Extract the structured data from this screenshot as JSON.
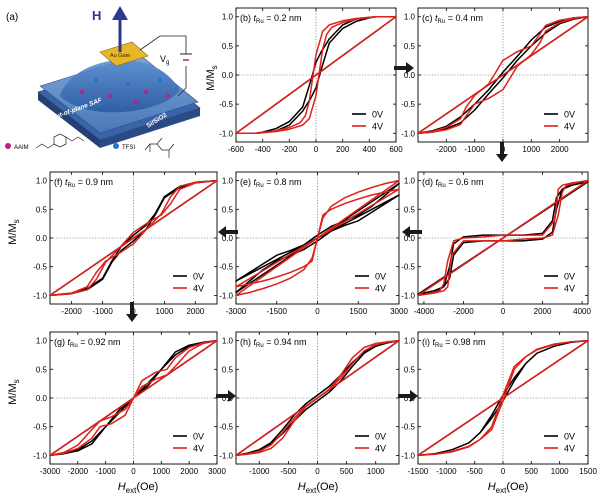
{
  "figure": {
    "colors": {
      "curve_0V": "#000000",
      "curve_4V": "#e0201b",
      "arrow": "#1a1a1a",
      "axis": "#000000",
      "dotted": "#555555"
    },
    "ylabel_base": "M/M",
    "ylabel_sub": "s",
    "xlabel_base": "H",
    "xlabel_sub": "ext",
    "xlabel_unit": "(Oe)",
    "flow_arrows": [
      "right",
      "down",
      "left",
      "left",
      "down",
      "right",
      "right"
    ]
  },
  "schematic": {
    "panel_label": "(a)",
    "field_label": "H",
    "gate_label": "V",
    "gate_sub": "g",
    "electrode_label": "Au Gate",
    "stack_label": "Out-of-plane SAF",
    "substrate_label": "Si/SiO2",
    "legend": [
      {
        "icon": "cation-dot",
        "label": "AAIM",
        "color": "#c0208a"
      },
      {
        "icon": "anion-dot",
        "label": "TFSI",
        "color": "#2a73c9"
      }
    ]
  },
  "chart_data": [
    {
      "type": "line",
      "panel": "(b)",
      "label_t": "t",
      "label_sub": "Ru",
      "label_value": "= 0.2 nm",
      "x_ticks": [
        -600,
        -400,
        -200,
        0,
        200,
        400,
        600
      ],
      "y_ticks": [
        1.0,
        0.5,
        0.0,
        -0.5,
        -1.0
      ],
      "xlim": [
        -600,
        600
      ],
      "ylim": [
        -1.15,
        1.15
      ],
      "legend": [
        "0V",
        "4V"
      ],
      "series": [
        {
          "name": "0V",
          "x": [
            -600,
            -450,
            -300,
            -200,
            -100,
            -40,
            0,
            40,
            100,
            200,
            300,
            400,
            450,
            600
          ],
          "y": [
            -1.0,
            -1.0,
            -0.96,
            -0.86,
            -0.62,
            -0.4,
            -0.22,
            0.1,
            0.55,
            0.8,
            0.92,
            0.98,
            1.0,
            1.0
          ]
        },
        {
          "name": "4V",
          "x": [
            -600,
            -450,
            -300,
            -200,
            -120,
            -80,
            -50,
            0,
            50,
            100,
            200,
            300,
            400,
            450,
            600
          ],
          "y": [
            -1.0,
            -1.0,
            -0.96,
            -0.9,
            -0.82,
            -0.7,
            -0.45,
            0.35,
            0.75,
            0.86,
            0.93,
            0.97,
            0.99,
            1.0,
            1.0
          ]
        }
      ]
    },
    {
      "type": "line",
      "panel": "(c)",
      "label_t": "t",
      "label_sub": "Ru",
      "label_value": "= 0.4 nm",
      "x_ticks": [
        -2000,
        -1000,
        0,
        1000,
        2000
      ],
      "y_ticks": [
        1.0,
        0.5,
        0.0,
        -0.5,
        -1.0
      ],
      "xlim": [
        -3000,
        3000
      ],
      "ylim": [
        -1.15,
        1.15
      ],
      "legend": [
        "0V",
        "4V"
      ],
      "series": [
        {
          "name": "0V",
          "x": [
            -3000,
            -2500,
            -2000,
            -1500,
            -1000,
            -500,
            0,
            500,
            1000,
            1500,
            2000,
            2500,
            3000
          ],
          "y": [
            -1.0,
            -0.98,
            -0.92,
            -0.82,
            -0.6,
            -0.32,
            -0.05,
            0.25,
            0.5,
            0.72,
            0.88,
            0.96,
            1.0
          ]
        },
        {
          "name": "4V",
          "x": [
            -3000,
            -2500,
            -2000,
            -1500,
            -1300,
            -1000,
            -500,
            0,
            500,
            1000,
            1300,
            1500,
            2000,
            2500,
            3000
          ],
          "y": [
            -1.0,
            -0.98,
            -0.94,
            -0.85,
            -0.7,
            -0.5,
            -0.4,
            -0.25,
            0.15,
            0.35,
            0.55,
            0.75,
            0.9,
            0.97,
            1.0
          ]
        }
      ]
    },
    {
      "type": "line",
      "panel": "(f)",
      "label_t": "t",
      "label_sub": "Ru",
      "label_value": "= 0.9 nm",
      "x_ticks": [
        -2000,
        -1000,
        0,
        1000,
        2000
      ],
      "y_ticks": [
        1.0,
        0.5,
        0.0,
        -0.5,
        -1.0
      ],
      "xlim": [
        -2700,
        2700
      ],
      "ylim": [
        -1.15,
        1.15
      ],
      "legend": [
        "0V",
        "4V"
      ],
      "series": [
        {
          "name": "0V",
          "x": [
            -2700,
            -2000,
            -1500,
            -1000,
            -700,
            -400,
            0,
            400,
            700,
            1000,
            1500,
            2000,
            2700
          ],
          "y": [
            -1.0,
            -0.97,
            -0.9,
            -0.72,
            -0.42,
            -0.22,
            -0.05,
            0.15,
            0.4,
            0.7,
            0.88,
            0.96,
            1.0
          ]
        },
        {
          "name": "4V",
          "x": [
            -2700,
            -2000,
            -1500,
            -1200,
            -900,
            -500,
            0,
            500,
            900,
            1200,
            1500,
            2000,
            2700
          ],
          "y": [
            -1.0,
            -0.96,
            -0.85,
            -0.6,
            -0.4,
            -0.28,
            -0.1,
            0.2,
            0.42,
            0.72,
            0.9,
            0.97,
            1.0
          ]
        }
      ]
    },
    {
      "type": "line",
      "panel": "(e)",
      "label_t": "t",
      "label_sub": "Ru",
      "label_value": "= 0.8 nm",
      "x_ticks": [
        -3000,
        -1500,
        0,
        1500,
        3000
      ],
      "y_ticks": [
        1.0,
        0.5,
        0.0,
        -0.5,
        -1.0
      ],
      "xlim": [
        -3000,
        3000
      ],
      "ylim": [
        -1.15,
        1.15
      ],
      "legend": [
        "0V",
        "4V"
      ],
      "series": [
        {
          "name": "0V",
          "x": [
            -3000,
            -2500,
            -2000,
            -1500,
            -1000,
            -500,
            0,
            500,
            1000,
            1500,
            2000,
            2500,
            3000
          ],
          "y": [
            -0.75,
            -0.6,
            -0.45,
            -0.3,
            -0.22,
            -0.12,
            0.05,
            0.2,
            0.3,
            0.4,
            0.55,
            0.75,
            0.95
          ]
        },
        {
          "name": "4V",
          "x": [
            -3000,
            -2500,
            -2000,
            -1500,
            -1000,
            -500,
            -200,
            0,
            200,
            500,
            1000,
            1500,
            2000,
            2500,
            3000
          ],
          "y": [
            -0.85,
            -0.8,
            -0.75,
            -0.68,
            -0.6,
            -0.5,
            -0.4,
            0.0,
            0.35,
            0.55,
            0.7,
            0.8,
            0.88,
            0.95,
            1.0
          ]
        }
      ]
    },
    {
      "type": "line",
      "panel": "(d)",
      "label_t": "t",
      "label_sub": "Ru",
      "label_value": "= 0.6 nm",
      "x_ticks": [
        -4000,
        -2000,
        0,
        2000,
        4000
      ],
      "y_ticks": [
        1.0,
        0.5,
        0.0,
        -0.5,
        -1.0
      ],
      "xlim": [
        -4300,
        4300
      ],
      "ylim": [
        -1.15,
        1.15
      ],
      "legend": [
        "0V",
        "4V"
      ],
      "series": [
        {
          "name": "0V",
          "x": [
            -4300,
            -3500,
            -3000,
            -2700,
            -2500,
            -2000,
            -1000,
            0,
            1000,
            2000,
            2500,
            2700,
            3000,
            3500,
            4300
          ],
          "y": [
            -1.0,
            -0.95,
            -0.85,
            -0.5,
            -0.1,
            0.02,
            0.05,
            0.05,
            0.05,
            0.08,
            0.3,
            0.7,
            0.85,
            0.92,
            0.98
          ]
        },
        {
          "name": "4V",
          "x": [
            -4300,
            -3800,
            -3200,
            -3000,
            -2800,
            -2500,
            -2000,
            -1000,
            0,
            1000,
            2000,
            2600,
            2800,
            3000,
            3500,
            4300
          ],
          "y": [
            -1.0,
            -0.97,
            -0.92,
            -0.8,
            -0.4,
            -0.05,
            0.0,
            0.02,
            0.05,
            0.05,
            0.05,
            0.3,
            0.85,
            0.92,
            0.96,
            1.0
          ]
        }
      ]
    },
    {
      "type": "line",
      "panel": "(g)",
      "label_t": "t",
      "label_sub": "Ru",
      "label_value": "= 0.92 nm",
      "x_ticks": [
        -3000,
        -2000,
        -1000,
        0,
        1000,
        2000,
        3000
      ],
      "y_ticks": [
        1.0,
        0.5,
        0.0,
        -0.5,
        -1.0
      ],
      "xlim": [
        -3000,
        3000
      ],
      "ylim": [
        -1.15,
        1.15
      ],
      "legend": [
        "0V",
        "4V"
      ],
      "series": [
        {
          "name": "0V",
          "x": [
            -3000,
            -2500,
            -2000,
            -1500,
            -1000,
            -500,
            0,
            500,
            1000,
            1500,
            2000,
            2500,
            3000
          ],
          "y": [
            -1.0,
            -0.97,
            -0.92,
            -0.8,
            -0.5,
            -0.2,
            0.0,
            0.25,
            0.5,
            0.75,
            0.9,
            0.97,
            1.0
          ]
        },
        {
          "name": "4V",
          "x": [
            -3000,
            -2500,
            -2000,
            -1500,
            -1200,
            -800,
            -300,
            0,
            300,
            800,
            1200,
            1500,
            2000,
            2500,
            3000
          ],
          "y": [
            -1.0,
            -0.95,
            -0.82,
            -0.55,
            -0.4,
            -0.33,
            -0.2,
            0.0,
            0.3,
            0.45,
            0.5,
            0.7,
            0.88,
            0.96,
            1.0
          ]
        }
      ]
    },
    {
      "type": "line",
      "panel": "(h)",
      "label_t": "t",
      "label_sub": "Ru",
      "label_value": "= 0.94 nm",
      "x_ticks": [
        -1000,
        -500,
        0,
        500,
        1000
      ],
      "y_ticks": [
        1.0,
        0.5,
        0.0,
        -0.5,
        -1.0
      ],
      "xlim": [
        -1400,
        1400
      ],
      "ylim": [
        -1.15,
        1.15
      ],
      "legend": [
        "0V",
        "4V"
      ],
      "series": [
        {
          "name": "0V",
          "x": [
            -1400,
            -1200,
            -1000,
            -800,
            -600,
            -400,
            -200,
            0,
            200,
            400,
            600,
            800,
            1000,
            1200,
            1400
          ],
          "y": [
            -1.0,
            -0.97,
            -0.9,
            -0.78,
            -0.55,
            -0.3,
            -0.1,
            0.05,
            0.2,
            0.4,
            0.62,
            0.8,
            0.9,
            0.96,
            1.0
          ]
        },
        {
          "name": "4V",
          "x": [
            -1400,
            -1200,
            -1000,
            -800,
            -600,
            -400,
            -200,
            0,
            200,
            400,
            600,
            800,
            1000,
            1200,
            1400
          ],
          "y": [
            -1.0,
            -0.98,
            -0.95,
            -0.88,
            -0.7,
            -0.4,
            -0.15,
            0.0,
            0.15,
            0.35,
            0.6,
            0.82,
            0.93,
            0.97,
            1.0
          ]
        }
      ]
    },
    {
      "type": "line",
      "panel": "(i)",
      "label_t": "t",
      "label_sub": "Ru",
      "label_value": "= 0.98 nm",
      "x_ticks": [
        -1500,
        -1000,
        -500,
        0,
        500,
        1000,
        1500
      ],
      "y_ticks": [
        1.0,
        0.5,
        0.0,
        -0.5,
        -1.0
      ],
      "xlim": [
        -1500,
        1500
      ],
      "ylim": [
        -1.15,
        1.15
      ],
      "legend": [
        "0V",
        "4V"
      ],
      "series": [
        {
          "name": "0V",
          "x": [
            -1500,
            -1200,
            -900,
            -600,
            -400,
            -200,
            0,
            200,
            400,
            600,
            900,
            1200,
            1500
          ],
          "y": [
            -1.0,
            -0.97,
            -0.9,
            -0.78,
            -0.6,
            -0.35,
            -0.05,
            0.3,
            0.6,
            0.78,
            0.9,
            0.97,
            1.0
          ]
        },
        {
          "name": "4V",
          "x": [
            -1500,
            -1200,
            -900,
            -600,
            -400,
            -200,
            0,
            200,
            400,
            600,
            900,
            1200,
            1500
          ],
          "y": [
            -1.0,
            -0.98,
            -0.94,
            -0.85,
            -0.72,
            -0.5,
            0.05,
            0.55,
            0.72,
            0.84,
            0.93,
            0.98,
            1.0
          ]
        }
      ]
    }
  ]
}
